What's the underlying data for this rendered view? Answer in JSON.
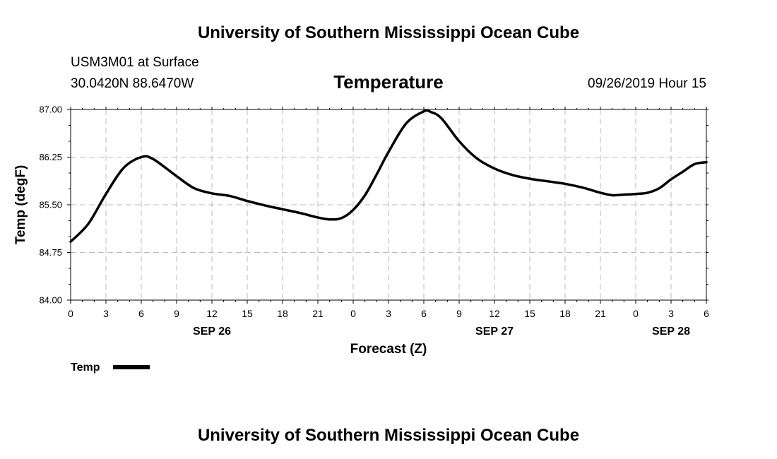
{
  "header": {
    "title": "University of Southern Mississippi Ocean Cube",
    "station": "USM3M01 at Surface",
    "location": "30.0420N 88.6470W",
    "date_hour": "09/26/2019 Hour 15"
  },
  "footer": {
    "title": "University of Southern Mississippi Ocean Cube"
  },
  "chart_data": {
    "type": "line",
    "title": "Temperature",
    "xlabel": "Forecast (Z)",
    "ylabel": "Temp (degF)",
    "ylim": [
      84.0,
      87.0
    ],
    "yticks": [
      "84.00",
      "84.75",
      "85.50",
      "86.25",
      "87.00"
    ],
    "x_range_hours": [
      0,
      54
    ],
    "xtick_labels": [
      "0",
      "3",
      "6",
      "9",
      "12",
      "15",
      "18",
      "21",
      "0",
      "3",
      "6",
      "9",
      "12",
      "15",
      "18",
      "21",
      "0",
      "3",
      "6"
    ],
    "day_labels": [
      {
        "label": "SEP 26",
        "hour": 12
      },
      {
        "label": "SEP 27",
        "hour": 36
      },
      {
        "label": "SEP 28",
        "hour": 51
      }
    ],
    "grid": true,
    "legend_position": "bottom-left",
    "series": [
      {
        "name": "Temp",
        "color": "#000000",
        "x": [
          0,
          1.5,
          3,
          4.5,
          6,
          7,
          9,
          10.5,
          12,
          13.5,
          15,
          16.5,
          18,
          19.5,
          21,
          22,
          23,
          24,
          25,
          26,
          27,
          28.5,
          30,
          30.6,
          31.5,
          33,
          34.5,
          36,
          37.5,
          39,
          40.5,
          42,
          43.5,
          45,
          46,
          47,
          48,
          49,
          50,
          51,
          52,
          53,
          54
        ],
        "y": [
          84.92,
          85.2,
          85.67,
          86.08,
          86.25,
          86.22,
          85.95,
          85.76,
          85.68,
          85.64,
          85.56,
          85.49,
          85.43,
          85.37,
          85.3,
          85.27,
          85.29,
          85.42,
          85.65,
          85.98,
          86.33,
          86.78,
          86.97,
          86.96,
          86.86,
          86.5,
          86.23,
          86.07,
          85.97,
          85.91,
          85.87,
          85.83,
          85.77,
          85.69,
          85.65,
          85.66,
          85.67,
          85.69,
          85.76,
          85.9,
          86.02,
          86.14,
          86.17
        ]
      }
    ]
  }
}
